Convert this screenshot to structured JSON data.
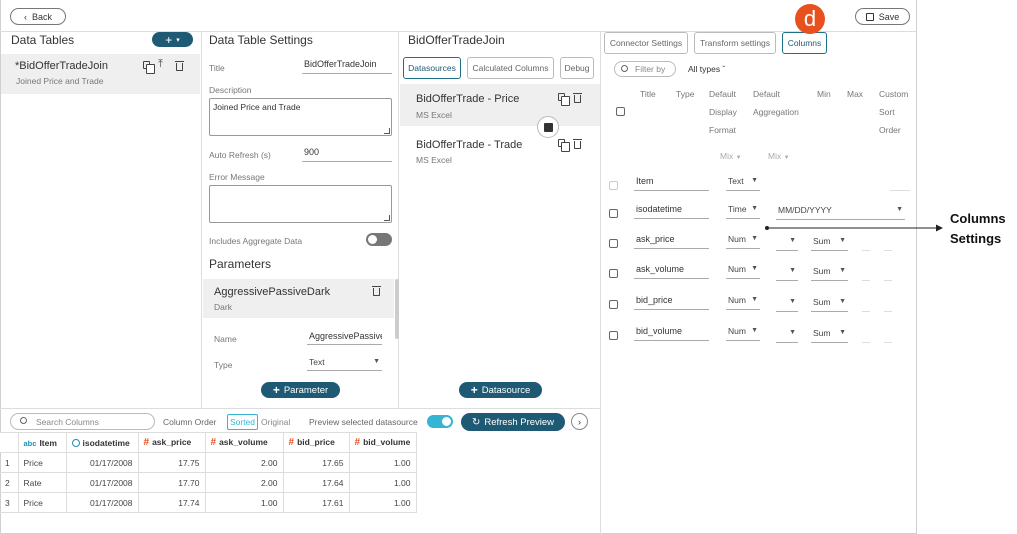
{
  "topbar": {
    "back_label": "Back",
    "save_label": "Save"
  },
  "data_tables": {
    "title": "Data Tables",
    "items": [
      {
        "name": "*BidOfferTradeJoin",
        "subtitle": "Joined Price and Trade"
      }
    ]
  },
  "settings": {
    "title": "Data Table Settings",
    "title_label": "Title",
    "title_value": "BidOfferTradeJoin",
    "description_label": "Description",
    "description_value": "Joined Price and Trade",
    "auto_refresh_label": "Auto Refresh (s)",
    "auto_refresh_value": "900",
    "error_label": "Error Message",
    "aggregate_label": "Includes Aggregate Data",
    "parameters_title": "Parameters",
    "parameter": {
      "name": "AggressivePassiveDark",
      "subtitle": "Dark",
      "name_label": "Name",
      "name_value": "AggressivePassive",
      "type_label": "Type",
      "type_value": "Text"
    },
    "add_parameter_label": "Parameter"
  },
  "join": {
    "title": "BidOfferTradeJoin",
    "tabs": [
      "Datasources",
      "Calculated Columns",
      "Debug"
    ],
    "datasources": [
      {
        "name": "BidOfferTrade - Price",
        "type": "MS Excel"
      },
      {
        "name": "BidOfferTrade - Trade",
        "type": "MS Excel"
      }
    ],
    "add_datasource_label": "Datasource"
  },
  "right": {
    "tabs": [
      "Connector Settings",
      "Transform settings",
      "Columns"
    ],
    "filter_placeholder": "Filter by",
    "all_types_label": "All types",
    "headers": {
      "title": "Title",
      "type": "Type",
      "default_display_format": [
        "Default",
        "Display",
        "Format"
      ],
      "default_aggregation": [
        "Default",
        "Aggregation"
      ],
      "min": "Min",
      "max": "Max",
      "custom_sort_order": [
        "Custom",
        "Sort",
        "Order"
      ]
    },
    "mix_labels": [
      "Mix",
      "Mix"
    ],
    "columns": [
      {
        "title": "Item",
        "type": "Text",
        "format": "",
        "aggregation": ""
      },
      {
        "title": "isodatetime",
        "type": "Time",
        "format": "MM/DD/YYYY",
        "aggregation": ""
      },
      {
        "title": "ask_price",
        "type": "Num",
        "format": "",
        "aggregation": "Sum"
      },
      {
        "title": "ask_volume",
        "type": "Num",
        "format": "",
        "aggregation": "Sum"
      },
      {
        "title": "bid_price",
        "type": "Num",
        "format": "",
        "aggregation": "Sum"
      },
      {
        "title": "bid_volume",
        "type": "Num",
        "format": "",
        "aggregation": "Sum"
      }
    ]
  },
  "callout": {
    "badge": "d",
    "label_line1": "Columns",
    "label_line2": "Settings"
  },
  "preview": {
    "search_placeholder": "Search Columns",
    "column_order_label": "Column Order",
    "sorted_label": "Sorted",
    "original_label": "Original",
    "preview_selected_label": "Preview selected datasource",
    "refresh_label": "Refresh Preview",
    "columns": [
      {
        "type_icon": "abc",
        "name": "Item"
      },
      {
        "type_icon": "clock-icon",
        "name": "isodatetime"
      },
      {
        "type_icon": "#",
        "name": "ask_price"
      },
      {
        "type_icon": "#",
        "name": "ask_volume"
      },
      {
        "type_icon": "#",
        "name": "bid_price"
      },
      {
        "type_icon": "#",
        "name": "bid_volume"
      }
    ],
    "rows": [
      [
        "1",
        "Price",
        "01/17/2008",
        "17.75",
        "2.00",
        "17.65",
        "1.00"
      ],
      [
        "2",
        "Rate",
        "01/17/2008",
        "17.70",
        "2.00",
        "17.64",
        "1.00"
      ],
      [
        "3",
        "Price",
        "01/17/2008",
        "17.74",
        "1.00",
        "17.61",
        "1.00"
      ]
    ]
  },
  "colors": {
    "accent": "#1e5a74",
    "toggle_on": "#35b5d3",
    "badge": "#e8501e"
  }
}
